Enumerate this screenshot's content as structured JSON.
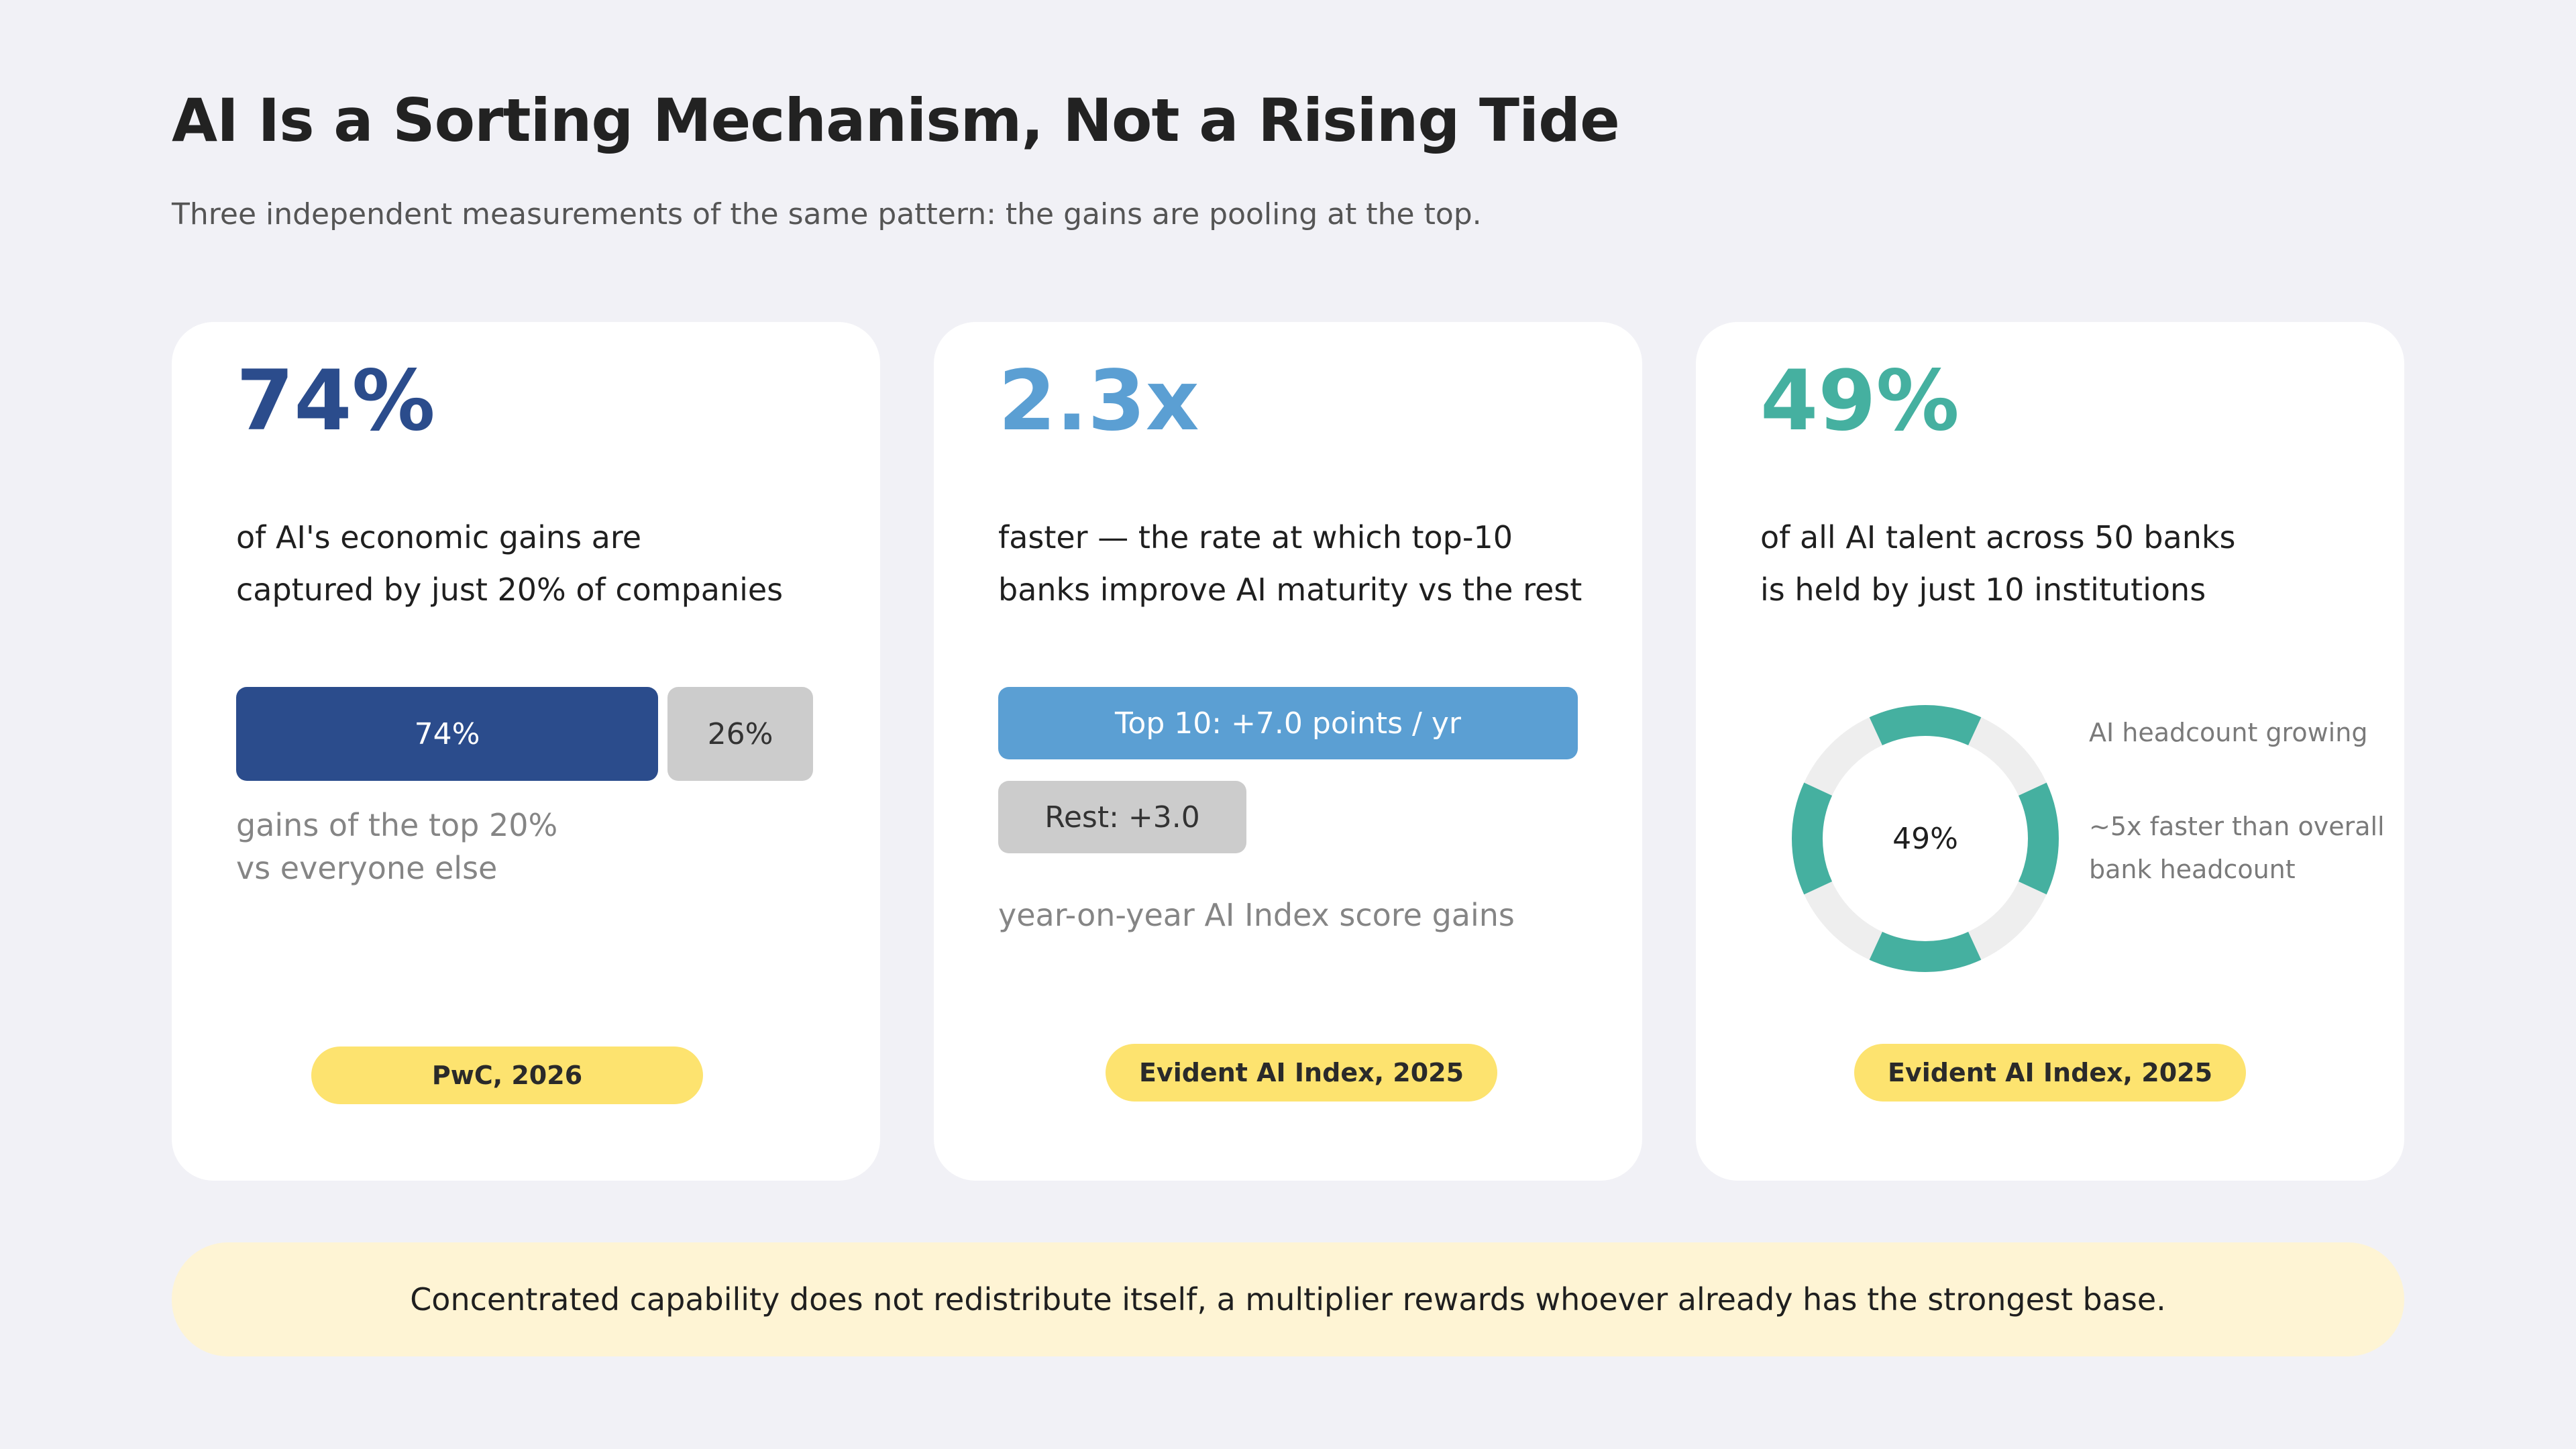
{
  "title": "AI Is a Sorting Mechanism, Not a Rising Tide",
  "subtitle": "Three independent measurements of the same pattern: the gains are pooling at the top.",
  "cards": [
    {
      "stat": "74%",
      "stat_color": "#2b4c8c",
      "description_lines": [
        "of AI's economic gains are",
        "captured by just 20% of companies"
      ],
      "bars": [
        {
          "label": "74%",
          "value": 74,
          "color": "#2b4c8c"
        },
        {
          "label": "26%",
          "value": 26,
          "color": "#cccccc"
        }
      ],
      "note_lines": [
        "gains of the top 20%",
        "vs everyone else"
      ],
      "source": "PwC, 2026"
    },
    {
      "stat": "2.3x",
      "stat_color": "#5b9fd3",
      "description_lines": [
        "faster — the rate at which top-10",
        "banks improve AI maturity vs the rest"
      ],
      "bars": [
        {
          "label": "Top 10: +7.0 points / yr",
          "value": 7.0,
          "color": "#5b9fd3"
        },
        {
          "label": "Rest: +3.0",
          "value": 3.0,
          "color": "#cccccc"
        }
      ],
      "note": "year-on-year AI Index score gains",
      "source": "Evident AI Index, 2025"
    },
    {
      "stat": "49%",
      "stat_color": "#45b0a0",
      "description_lines": [
        "of all AI talent across 50 banks",
        "is held by just 10 institutions"
      ],
      "donut": {
        "label": "49%",
        "value": 49,
        "color": "#45b0a0",
        "track_color": "#eeeeee"
      },
      "side_note_1": "AI headcount growing",
      "side_note_2_lines": [
        "~5x faster than overall",
        "bank headcount"
      ],
      "source": "Evident AI Index, 2025"
    }
  ],
  "callout": "Concentrated capability does not redistribute itself, a multiplier rewards whoever already has the strongest base.",
  "colors": {
    "background": "#f1f1f6",
    "card": "#ffffff",
    "pill": "#fde36f",
    "callout_bg": "#fef4d4"
  }
}
